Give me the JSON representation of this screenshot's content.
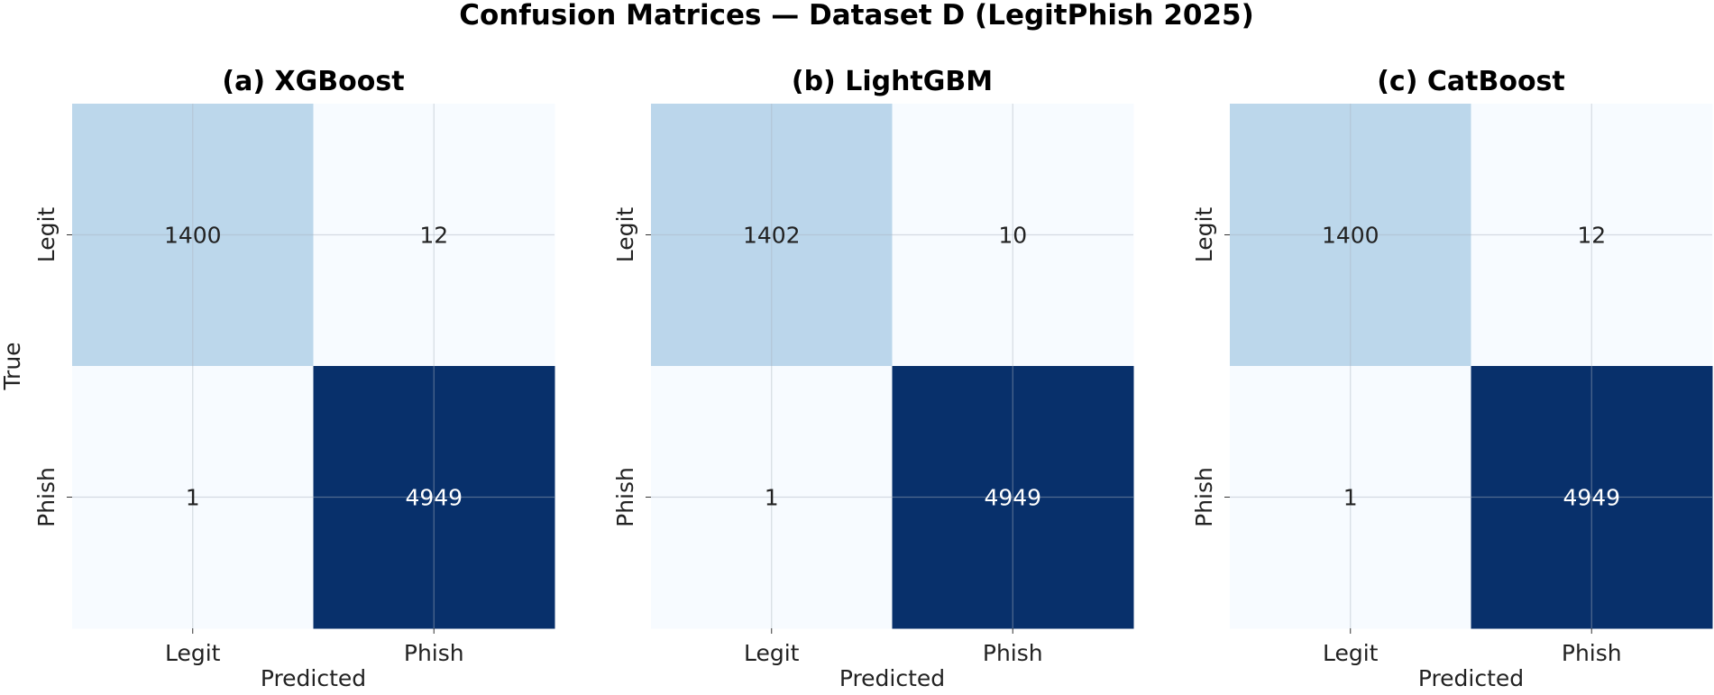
{
  "figure": {
    "title": "Confusion Matrices — Dataset D (LegitPhish 2025)"
  },
  "chart_data": [
    {
      "type": "heatmap",
      "title": "(a) XGBoost",
      "xlabel": "Predicted",
      "ylabel": "True",
      "x_categories": [
        "Legit",
        "Phish"
      ],
      "y_categories": [
        "Legit",
        "Phish"
      ],
      "matrix": [
        [
          1400,
          12
        ],
        [
          1,
          4949
        ]
      ],
      "colormap": "Blues",
      "grid": true
    },
    {
      "type": "heatmap",
      "title": "(b) LightGBM",
      "xlabel": "Predicted",
      "ylabel": "",
      "x_categories": [
        "Legit",
        "Phish"
      ],
      "y_categories": [
        "Legit",
        "Phish"
      ],
      "matrix": [
        [
          1402,
          10
        ],
        [
          1,
          4949
        ]
      ],
      "colormap": "Blues",
      "grid": true
    },
    {
      "type": "heatmap",
      "title": "(c) CatBoost",
      "xlabel": "Predicted",
      "ylabel": "",
      "x_categories": [
        "Legit",
        "Phish"
      ],
      "y_categories": [
        "Legit",
        "Phish"
      ],
      "matrix": [
        [
          1400,
          12
        ],
        [
          1,
          4949
        ]
      ],
      "colormap": "Blues",
      "grid": true
    }
  ]
}
